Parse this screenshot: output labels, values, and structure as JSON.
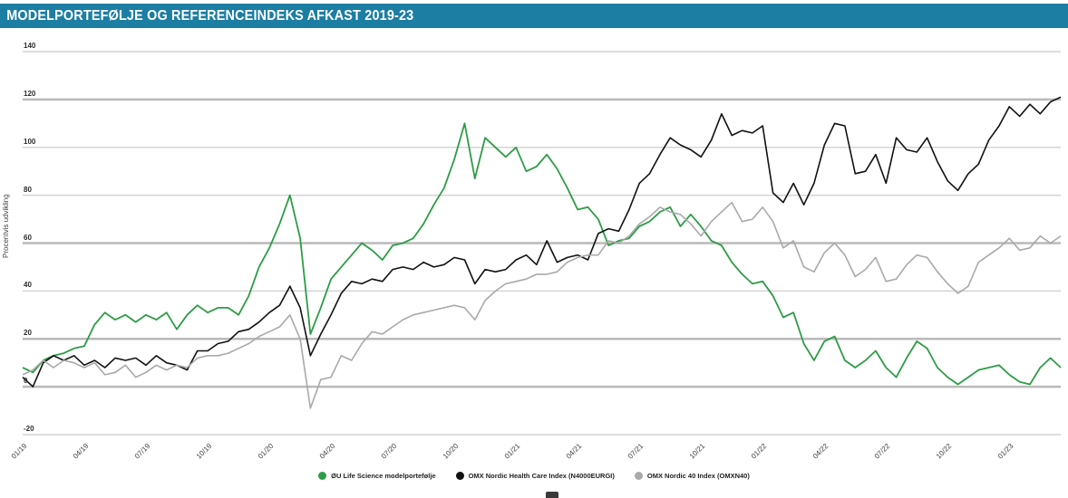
{
  "title_bar": {
    "title": "MODELPORTEFØLJE OG REFERENCEINDEKS AFKAST 2019-23",
    "background": "#1d7ea3",
    "text_color": "#ffffff"
  },
  "legend": {
    "items": [
      {
        "label": "ØU Life Science modelportefølje",
        "dot_style": "background:#2d9c46"
      },
      {
        "label": "OMX Nordic Health Care Index (N4000EURGI)",
        "dot_style": "background:#111111"
      },
      {
        "label": "OMX Nordic 40 Index (OMXN40)",
        "dot_style": "background:#a9a9a9"
      }
    ]
  },
  "chart_data": {
    "type": "line",
    "title": "MODELPORTEFØLJE OG REFERENCEINDEKS AFKAST 2019-23",
    "xlabel": "",
    "ylabel": "Procentvis udvikling",
    "ylim": [
      -20,
      140
    ],
    "yticks": [
      140,
      120,
      100,
      80,
      60,
      40,
      20,
      0,
      -20
    ],
    "emphasized_gridlines": [
      120,
      60,
      20,
      0
    ],
    "grid": "horizontal",
    "legend_position": "bottom",
    "xticks": [
      "01/19",
      "04/19",
      "07/19",
      "10/19",
      "01/20",
      "04/20",
      "07/20",
      "10/20",
      "01/21",
      "04/21",
      "07/21",
      "10/21",
      "01/22",
      "04/22",
      "07/22",
      "10/22",
      "01/23"
    ],
    "xtick_month_step": 3,
    "x_sampling": "values sampled every 0.5 month from 01/2019 (month 0) to month 50.5",
    "series": [
      {
        "name": "ØU Life Science modelportefølje",
        "color": "#2d9c46",
        "values": [
          8,
          6,
          11,
          13,
          14,
          16,
          17,
          26,
          31,
          28,
          30,
          27,
          30,
          28,
          31,
          24,
          30,
          34,
          31,
          33,
          33,
          30,
          38,
          50,
          58,
          68,
          80,
          62,
          22,
          33,
          45,
          50,
          55,
          60,
          57,
          53,
          59,
          60,
          62,
          68,
          76,
          83,
          95,
          110,
          87,
          104,
          100,
          96,
          100,
          90,
          92,
          97,
          91,
          83,
          74,
          75,
          70,
          59,
          61,
          62,
          67,
          69,
          73,
          75,
          67,
          72,
          67,
          61,
          59,
          52,
          47,
          43,
          44,
          38,
          29,
          31,
          18,
          11,
          19,
          21,
          11,
          8,
          11,
          15,
          8,
          4,
          12,
          19,
          16,
          8,
          4,
          1,
          4,
          7,
          8,
          9,
          5,
          2,
          1,
          8,
          12,
          8
        ]
      },
      {
        "name": "OMX Nordic Health Care Index (N4000EURGI)",
        "color": "#111111",
        "values": [
          4,
          0,
          10,
          13,
          11,
          13,
          9,
          11,
          8,
          12,
          11,
          12,
          9,
          13,
          10,
          9,
          7,
          15,
          15,
          18,
          19,
          23,
          24,
          27,
          31,
          34,
          42,
          33,
          13,
          22,
          30,
          39,
          44,
          43,
          45,
          44,
          49,
          50,
          49,
          52,
          50,
          51,
          54,
          53,
          43,
          49,
          48,
          49,
          53,
          55,
          51,
          61,
          52,
          54,
          55,
          53,
          64,
          66,
          65,
          74,
          85,
          89,
          97,
          104,
          101,
          99,
          96,
          103,
          114,
          105,
          107,
          106,
          109,
          81,
          77,
          85,
          76,
          85,
          101,
          110,
          109,
          89,
          90,
          97,
          85,
          104,
          99,
          98,
          104,
          94,
          86,
          82,
          89,
          93,
          103,
          109,
          117,
          113,
          118,
          114,
          119,
          121
        ]
      },
      {
        "name": "OMX Nordic 40 Index (OMXN40)",
        "color": "#a9a9a9",
        "values": [
          5,
          7,
          11,
          8,
          11,
          10,
          8,
          10,
          5,
          6,
          9,
          4,
          6,
          9,
          7,
          9,
          8,
          12,
          13,
          13,
          14,
          16,
          18,
          21,
          23,
          25,
          30,
          20,
          -9,
          3,
          4,
          13,
          11,
          18,
          23,
          22,
          25,
          28,
          30,
          31,
          32,
          33,
          34,
          33,
          28,
          36,
          40,
          43,
          44,
          45,
          47,
          47,
          48,
          52,
          54,
          55,
          55,
          61,
          60,
          63,
          68,
          71,
          75,
          73,
          72,
          68,
          63,
          69,
          73,
          77,
          69,
          70,
          75,
          69,
          58,
          61,
          50,
          48,
          56,
          60,
          55,
          46,
          49,
          54,
          44,
          45,
          51,
          55,
          54,
          48,
          43,
          39,
          42,
          52,
          55,
          58,
          62,
          57,
          58,
          63,
          60,
          63
        ]
      }
    ]
  }
}
